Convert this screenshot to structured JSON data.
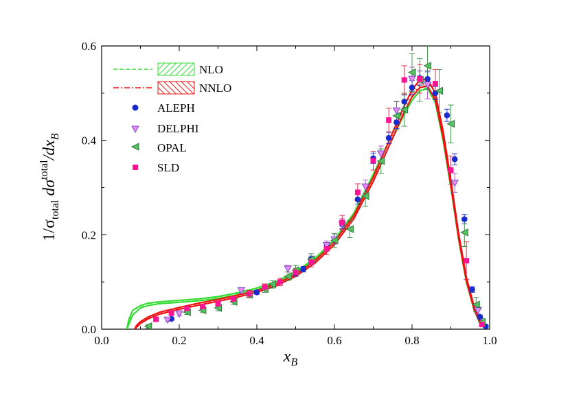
{
  "chart_data": {
    "type": "scatter",
    "xlabel": "x_B",
    "ylabel": "1/σ_total dσ^total/dx_B",
    "xlim": [
      0.0,
      1.0
    ],
    "ylim": [
      0.0,
      0.6
    ],
    "x_ticks": [
      "0.0",
      "0.2",
      "0.4",
      "0.6",
      "0.8",
      "1.0"
    ],
    "y_ticks": [
      "0.0",
      "0.2",
      "0.4",
      "0.6"
    ],
    "legend_position": "top-left",
    "legend": {
      "nlo": "NLO",
      "nnlo": "NNLO",
      "aleph": "ALEPH",
      "delphi": "DELPHI",
      "opal": "OPAL",
      "sld": "SLD"
    },
    "colors": {
      "nlo": "#33dd33",
      "nnlo": "#ee1111",
      "aleph": "#1a2bcc",
      "delphi": "#e98df0",
      "opal": "#55c266",
      "sld": "#ff1493"
    },
    "bands": [
      {
        "name": "NLO",
        "x": [
          0.065,
          0.07,
          0.08,
          0.1,
          0.12,
          0.15,
          0.2,
          0.25,
          0.3,
          0.35,
          0.4,
          0.45,
          0.5,
          0.55,
          0.6,
          0.65,
          0.7,
          0.75,
          0.78,
          0.8,
          0.82,
          0.84,
          0.86,
          0.88,
          0.9,
          0.92,
          0.94,
          0.96,
          0.975,
          0.99
        ],
        "lo": [
          0.0,
          0.01,
          0.03,
          0.045,
          0.05,
          0.054,
          0.057,
          0.06,
          0.065,
          0.073,
          0.083,
          0.097,
          0.118,
          0.146,
          0.185,
          0.24,
          0.32,
          0.405,
          0.455,
          0.485,
          0.505,
          0.51,
          0.48,
          0.4,
          0.3,
          0.19,
          0.1,
          0.04,
          0.012,
          0.0
        ],
        "hi": [
          0.0,
          0.02,
          0.04,
          0.05,
          0.055,
          0.058,
          0.061,
          0.064,
          0.069,
          0.077,
          0.087,
          0.101,
          0.122,
          0.15,
          0.19,
          0.246,
          0.328,
          0.415,
          0.466,
          0.497,
          0.518,
          0.522,
          0.492,
          0.412,
          0.31,
          0.198,
          0.106,
          0.045,
          0.016,
          0.002
        ]
      },
      {
        "name": "NNLO",
        "x": [
          0.085,
          0.09,
          0.1,
          0.12,
          0.15,
          0.2,
          0.25,
          0.3,
          0.35,
          0.4,
          0.45,
          0.5,
          0.55,
          0.6,
          0.65,
          0.7,
          0.75,
          0.78,
          0.8,
          0.82,
          0.84,
          0.86,
          0.88,
          0.9,
          0.92,
          0.94,
          0.96,
          0.975,
          0.99
        ],
        "lo": [
          0.0,
          0.004,
          0.012,
          0.022,
          0.032,
          0.042,
          0.051,
          0.059,
          0.068,
          0.078,
          0.092,
          0.112,
          0.14,
          0.179,
          0.234,
          0.313,
          0.405,
          0.46,
          0.492,
          0.512,
          0.515,
          0.486,
          0.406,
          0.305,
          0.193,
          0.102,
          0.042,
          0.014,
          0.001
        ],
        "hi": [
          0.0,
          0.008,
          0.016,
          0.026,
          0.036,
          0.046,
          0.055,
          0.063,
          0.072,
          0.082,
          0.096,
          0.116,
          0.145,
          0.185,
          0.241,
          0.322,
          0.417,
          0.473,
          0.507,
          0.528,
          0.53,
          0.5,
          0.42,
          0.317,
          0.203,
          0.11,
          0.048,
          0.018,
          0.003
        ]
      }
    ],
    "series": [
      {
        "name": "ALEPH",
        "marker": "circle",
        "x": [
          0.18,
          0.4,
          0.5,
          0.52,
          0.54,
          0.58,
          0.62,
          0.66,
          0.7,
          0.74,
          0.76,
          0.78,
          0.8,
          0.82,
          0.84,
          0.86,
          0.89,
          0.91,
          0.935,
          0.955,
          0.975,
          0.99
        ],
        "y": [
          0.022,
          0.078,
          0.118,
          0.127,
          0.148,
          0.175,
          0.222,
          0.275,
          0.362,
          0.405,
          0.438,
          0.482,
          0.512,
          0.532,
          0.53,
          0.5,
          0.453,
          0.36,
          0.233,
          0.084,
          0.026,
          0.006
        ],
        "err": [
          0.003,
          0.004,
          0.005,
          0.006,
          0.007,
          0.008,
          0.009,
          0.01,
          0.011,
          0.012,
          0.013,
          0.014,
          0.015,
          0.015,
          0.015,
          0.014,
          0.013,
          0.012,
          0.01,
          0.006,
          0.004,
          0.002
        ]
      },
      {
        "name": "DELPHI",
        "marker": "triangle-down",
        "x": [
          0.17,
          0.2,
          0.36,
          0.48,
          0.58,
          0.6,
          0.62,
          0.68,
          0.72,
          0.76,
          0.8,
          0.84,
          0.91,
          0.97
        ],
        "y": [
          0.02,
          0.033,
          0.082,
          0.128,
          0.178,
          0.19,
          0.222,
          0.302,
          0.372,
          0.463,
          0.53,
          0.518,
          0.31,
          0.04
        ],
        "err": [
          0.004,
          0.005,
          0.006,
          0.007,
          0.009,
          0.01,
          0.012,
          0.014,
          0.016,
          0.02,
          0.025,
          0.03,
          0.02,
          0.008
        ]
      },
      {
        "name": "OPAL",
        "marker": "triangle-left",
        "x": [
          0.12,
          0.22,
          0.26,
          0.3,
          0.34,
          0.38,
          0.42,
          0.44,
          0.48,
          0.5,
          0.54,
          0.6,
          0.64,
          0.68,
          0.72,
          0.76,
          0.78,
          0.8,
          0.82,
          0.84,
          0.87,
          0.9,
          0.935,
          0.965,
          0.98
        ],
        "y": [
          0.006,
          0.036,
          0.04,
          0.045,
          0.058,
          0.073,
          0.085,
          0.095,
          0.112,
          0.125,
          0.148,
          0.188,
          0.212,
          0.282,
          0.356,
          0.452,
          0.465,
          0.544,
          0.528,
          0.558,
          0.505,
          0.435,
          0.205,
          0.052,
          0.015
        ],
        "err": [
          0.004,
          0.005,
          0.005,
          0.006,
          0.006,
          0.007,
          0.007,
          0.008,
          0.009,
          0.01,
          0.012,
          0.015,
          0.018,
          0.022,
          0.026,
          0.03,
          0.035,
          0.04,
          0.045,
          0.05,
          0.045,
          0.04,
          0.03,
          0.015,
          0.008
        ]
      },
      {
        "name": "SLD",
        "marker": "square",
        "x": [
          0.14,
          0.18,
          0.22,
          0.26,
          0.3,
          0.34,
          0.38,
          0.42,
          0.46,
          0.5,
          0.54,
          0.58,
          0.62,
          0.66,
          0.7,
          0.74,
          0.78,
          0.82,
          0.86,
          0.9,
          0.94,
          0.98
        ],
        "y": [
          0.021,
          0.034,
          0.044,
          0.048,
          0.054,
          0.064,
          0.075,
          0.089,
          0.1,
          0.12,
          0.142,
          0.17,
          0.226,
          0.29,
          0.357,
          0.443,
          0.528,
          0.53,
          0.52,
          0.337,
          0.145,
          0.01
        ],
        "err": [
          0.004,
          0.004,
          0.005,
          0.005,
          0.006,
          0.006,
          0.007,
          0.007,
          0.008,
          0.009,
          0.01,
          0.012,
          0.015,
          0.018,
          0.02,
          0.025,
          0.03,
          0.03,
          0.03,
          0.03,
          0.04,
          0.005
        ]
      }
    ]
  }
}
